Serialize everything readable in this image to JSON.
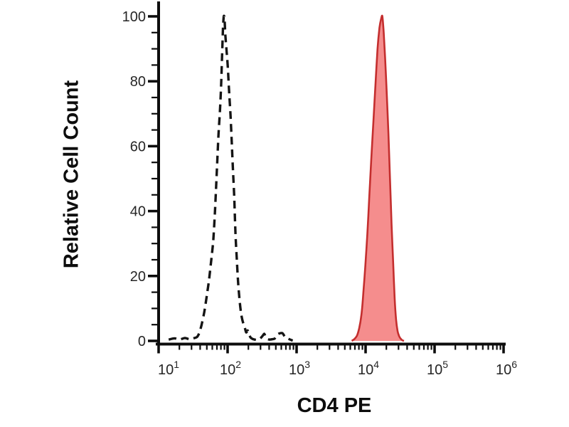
{
  "chart_data": {
    "type": "area",
    "title": "",
    "xlabel": "CD4 PE",
    "ylabel": "Relative Cell Count",
    "xscale": "log",
    "xlim": [
      10,
      1000000
    ],
    "ylim": [
      0,
      105
    ],
    "grid": false,
    "legend": "none",
    "x_ticks": {
      "base": 10,
      "exponents": [
        1,
        2,
        3,
        4,
        5,
        6
      ],
      "minor": "multiples 2-9 within each decade"
    },
    "y_ticks": {
      "major": [
        0,
        20,
        40,
        60,
        80,
        100
      ],
      "minor_step": 5
    },
    "series": [
      {
        "name": "dashed-black-histogram",
        "type": "line",
        "line_style": "dashed",
        "color": "#141414",
        "fill": "none",
        "points": [
          [
            14,
            0.4
          ],
          [
            17,
            0.8
          ],
          [
            20,
            0.4
          ],
          [
            24,
            0.9
          ],
          [
            28,
            0.5
          ],
          [
            32,
            0.8
          ],
          [
            36,
            1.2
          ],
          [
            39,
            2.5
          ],
          [
            42,
            5
          ],
          [
            46,
            9
          ],
          [
            50,
            14
          ],
          [
            54,
            19
          ],
          [
            58,
            25
          ],
          [
            62,
            31
          ],
          [
            66,
            41
          ],
          [
            70,
            53
          ],
          [
            74,
            64
          ],
          [
            78,
            72
          ],
          [
            81,
            80
          ],
          [
            84,
            91
          ],
          [
            86,
            97
          ],
          [
            88,
            100
          ],
          [
            90,
            99.5
          ],
          [
            93,
            94
          ],
          [
            97,
            89
          ],
          [
            101,
            84
          ],
          [
            105,
            77
          ],
          [
            110,
            70
          ],
          [
            115,
            61
          ],
          [
            120,
            52
          ],
          [
            125,
            44
          ],
          [
            130,
            33
          ],
          [
            136,
            25
          ],
          [
            142,
            18
          ],
          [
            150,
            12
          ],
          [
            158,
            8
          ],
          [
            168,
            5.5
          ],
          [
            178,
            4
          ],
          [
            186,
            2.6
          ],
          [
            196,
            3.2
          ],
          [
            206,
            1.8
          ],
          [
            216,
            1
          ],
          [
            230,
            0.6
          ],
          [
            248,
            0.4
          ],
          [
            268,
            0.3
          ],
          [
            295,
            0.7
          ],
          [
            318,
            1.4
          ],
          [
            340,
            2.2
          ],
          [
            356,
            1.2
          ],
          [
            378,
            0.6
          ],
          [
            405,
            0.4
          ],
          [
            440,
            0.5
          ],
          [
            480,
            0.7
          ],
          [
            540,
            2.1
          ],
          [
            620,
            2.4
          ],
          [
            680,
            1.2
          ],
          [
            750,
            0.7
          ],
          [
            830,
            0.3
          ],
          [
            880,
            0.1
          ]
        ]
      },
      {
        "name": "red-filled-histogram",
        "type": "area",
        "line_style": "solid",
        "color": "#c42e2e",
        "fill": "#f58d8d",
        "points": [
          [
            6300,
            0
          ],
          [
            6900,
            0.6
          ],
          [
            7500,
            1.6
          ],
          [
            8100,
            4
          ],
          [
            8700,
            8
          ],
          [
            9300,
            15
          ],
          [
            9900,
            23
          ],
          [
            10600,
            33
          ],
          [
            11300,
            44
          ],
          [
            12100,
            56
          ],
          [
            13000,
            68
          ],
          [
            13900,
            79
          ],
          [
            14900,
            90
          ],
          [
            15900,
            96.5
          ],
          [
            16900,
            99.5
          ],
          [
            17500,
            100
          ],
          [
            18300,
            95
          ],
          [
            19200,
            87
          ],
          [
            20300,
            76
          ],
          [
            21400,
            64
          ],
          [
            22600,
            50
          ],
          [
            23800,
            36
          ],
          [
            25100,
            24
          ],
          [
            26400,
            13
          ],
          [
            27700,
            6.5
          ],
          [
            29100,
            3
          ],
          [
            30600,
            1.5
          ],
          [
            32200,
            0.7
          ],
          [
            34000,
            0.2
          ],
          [
            36000,
            0
          ]
        ]
      }
    ]
  },
  "colors": {
    "axis": "#0d0d0d",
    "tick_label": "#262626",
    "dashed_series": "#141414",
    "red_stroke": "#c42e2e",
    "red_fill": "#f58d8d",
    "background": "#ffffff"
  }
}
